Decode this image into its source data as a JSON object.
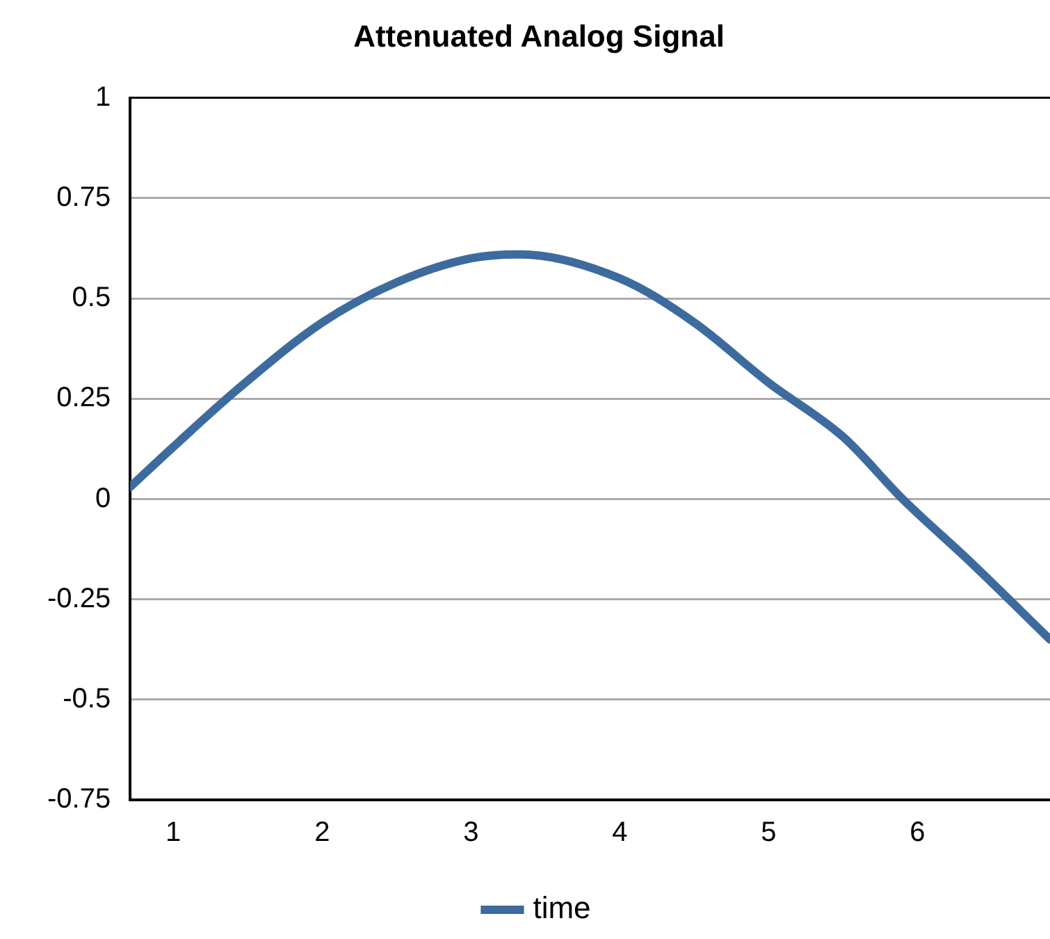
{
  "chart_data": {
    "type": "line",
    "title": "Attenuated Analog Signal",
    "x": [
      0.71,
      1,
      1.42,
      2,
      2.5,
      3,
      3.33,
      4,
      4.5,
      5,
      5.5,
      5.9,
      6.35,
      6.89
    ],
    "series": [
      {
        "name": "time",
        "color": "#3d6b9e",
        "values": [
          0.03,
          0.13,
          0.27,
          0.44,
          0.54,
          0.6,
          0.61,
          0.55,
          0.44,
          0.29,
          0.155,
          0,
          -0.155,
          -0.35
        ]
      }
    ],
    "xlim": [
      0.71,
      6.89
    ],
    "xticks": [
      1,
      2,
      3,
      4,
      5,
      6
    ],
    "ylim": [
      -0.75,
      1
    ],
    "yticks": [
      -0.75,
      -0.5,
      -0.25,
      0,
      0.25,
      0.5,
      0.75,
      1
    ],
    "grid": "y",
    "legend": "bottom",
    "marker": "none"
  }
}
